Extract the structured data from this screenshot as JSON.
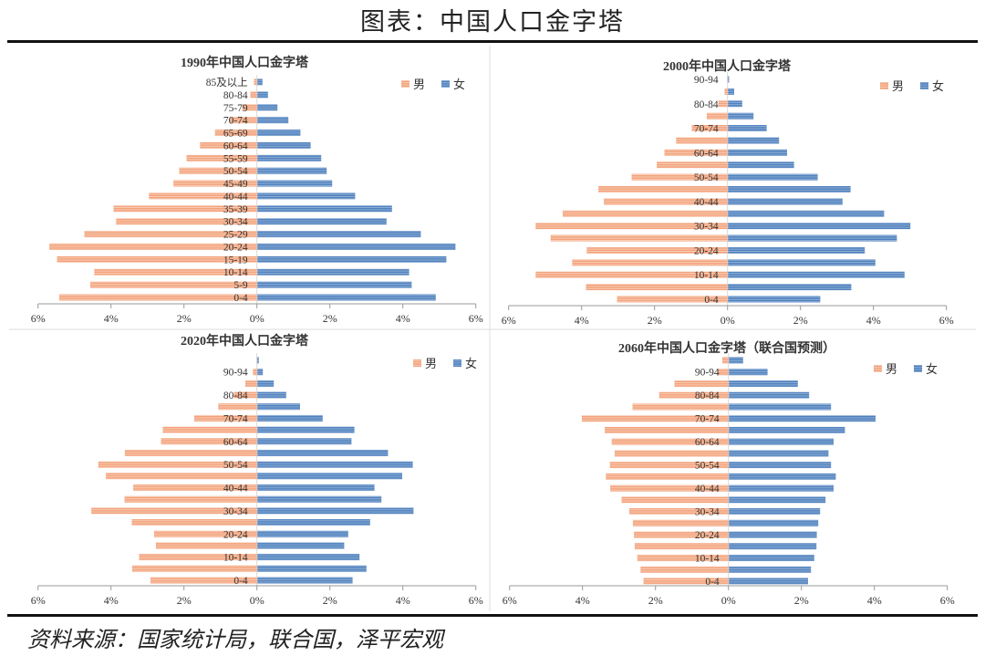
{
  "header": {
    "title": "图表：中国人口金字塔"
  },
  "footer": {
    "source": "资料来源：国家统计局，联合国，泽平宏观"
  },
  "colors": {
    "male": "#F2A27B",
    "female": "#4F81BD"
  },
  "chart_data": [
    {
      "type": "bar",
      "orientation": "horizontal-pyramid",
      "title": "1990年中国人口金字塔",
      "legend": [
        "男",
        "女"
      ],
      "legend_position": "top-right",
      "xlim": [
        -6,
        6
      ],
      "xtick_labels": [
        "6%",
        "4%",
        "2%",
        "0%",
        "2%",
        "4%",
        "6%"
      ],
      "categories": [
        "0-4",
        "5-9",
        "10-14",
        "15-19",
        "20-24",
        "25-29",
        "30-34",
        "35-39",
        "40-44",
        "45-49",
        "50-54",
        "55-59",
        "60-64",
        "65-69",
        "70-74",
        "75-79",
        "80-84",
        "85及以上"
      ],
      "series": [
        {
          "name": "男",
          "values": [
            5.42,
            4.57,
            4.46,
            5.48,
            5.69,
            4.73,
            3.86,
            3.93,
            2.96,
            2.29,
            2.13,
            1.93,
            1.56,
            1.15,
            0.75,
            0.4,
            0.18,
            0.08
          ]
        },
        {
          "name": "女",
          "values": [
            4.89,
            4.23,
            4.16,
            5.18,
            5.43,
            4.48,
            3.54,
            3.69,
            2.68,
            2.05,
            1.9,
            1.75,
            1.46,
            1.18,
            0.85,
            0.55,
            0.29,
            0.14
          ]
        }
      ]
    },
    {
      "type": "bar",
      "orientation": "horizontal-pyramid",
      "title": "2000年中国人口金字塔",
      "legend": [
        "男",
        "女"
      ],
      "legend_position": "top-right",
      "xlim": [
        -6,
        6
      ],
      "xtick_labels": [
        "6%",
        "4%",
        "2%",
        "0%",
        "2%",
        "4%",
        "6%"
      ],
      "categories": [
        "0-4",
        "",
        "10-14",
        "",
        "20-24",
        "",
        "30-34",
        "",
        "40-44",
        "",
        "50-54",
        "",
        "60-64",
        "",
        "70-74",
        "",
        "80-84",
        "",
        "90-94"
      ],
      "series": [
        {
          "name": "男",
          "values": [
            3.03,
            3.88,
            5.26,
            4.26,
            3.86,
            4.85,
            5.26,
            4.52,
            3.39,
            3.54,
            2.63,
            1.94,
            1.73,
            1.41,
            0.98,
            0.57,
            0.25,
            0.08,
            0.01
          ]
        },
        {
          "name": "女",
          "values": [
            2.53,
            3.38,
            4.84,
            4.04,
            3.75,
            4.63,
            5.0,
            4.28,
            3.14,
            3.36,
            2.46,
            1.81,
            1.62,
            1.4,
            1.06,
            0.7,
            0.39,
            0.17,
            0.03
          ]
        }
      ]
    },
    {
      "type": "bar",
      "orientation": "horizontal-pyramid",
      "title": "2020年中国人口金字塔",
      "legend": [
        "男",
        "女"
      ],
      "legend_position": "top-right",
      "xlim": [
        -6,
        6
      ],
      "xtick_labels": [
        "6%",
        "4%",
        "2%",
        "0%",
        "2%",
        "4%",
        "6%"
      ],
      "categories": [
        "0-4",
        "",
        "10-14",
        "",
        "20-24",
        "",
        "30-34",
        "",
        "40-44",
        "",
        "50-54",
        "",
        "60-64",
        "",
        "70-74",
        "",
        "80-84",
        "",
        "90-94",
        ""
      ],
      "series": [
        {
          "name": "男",
          "values": [
            2.92,
            3.42,
            3.23,
            2.77,
            2.82,
            3.43,
            4.54,
            3.63,
            3.39,
            4.14,
            4.35,
            3.62,
            2.63,
            2.58,
            1.72,
            1.06,
            0.63,
            0.32,
            0.11,
            0.01
          ]
        },
        {
          "name": "女",
          "values": [
            2.61,
            2.99,
            2.8,
            2.38,
            2.49,
            3.09,
            4.28,
            3.4,
            3.21,
            3.97,
            4.26,
            3.58,
            2.58,
            2.66,
            1.79,
            1.17,
            0.79,
            0.45,
            0.15,
            0.04
          ]
        }
      ]
    },
    {
      "type": "bar",
      "orientation": "horizontal-pyramid",
      "title": "2060年中国人口金字塔（联合国预测）",
      "legend": [
        "男",
        "女"
      ],
      "legend_position": "top-right",
      "xlim": [
        -6,
        6
      ],
      "xtick_labels": [
        "6%",
        "4%",
        "2%",
        "0%",
        "2%",
        "4%",
        "6%"
      ],
      "categories": [
        "0-4",
        "",
        "10-14",
        "",
        "20-24",
        "",
        "30-34",
        "",
        "40-44",
        "",
        "50-54",
        "",
        "60-64",
        "",
        "70-74",
        "",
        "80-84",
        "",
        "90-94",
        ""
      ],
      "series": [
        {
          "name": "男",
          "values": [
            2.33,
            2.41,
            2.5,
            2.57,
            2.59,
            2.62,
            2.72,
            2.93,
            3.24,
            3.36,
            3.25,
            3.12,
            3.2,
            3.39,
            4.02,
            2.63,
            1.9,
            1.48,
            0.3,
            0.17
          ]
        },
        {
          "name": "女",
          "values": [
            2.17,
            2.25,
            2.34,
            2.4,
            2.41,
            2.45,
            2.5,
            2.65,
            2.87,
            2.93,
            2.8,
            2.73,
            2.87,
            3.18,
            4.02,
            2.8,
            2.2,
            1.89,
            1.06,
            0.39
          ]
        }
      ]
    }
  ]
}
